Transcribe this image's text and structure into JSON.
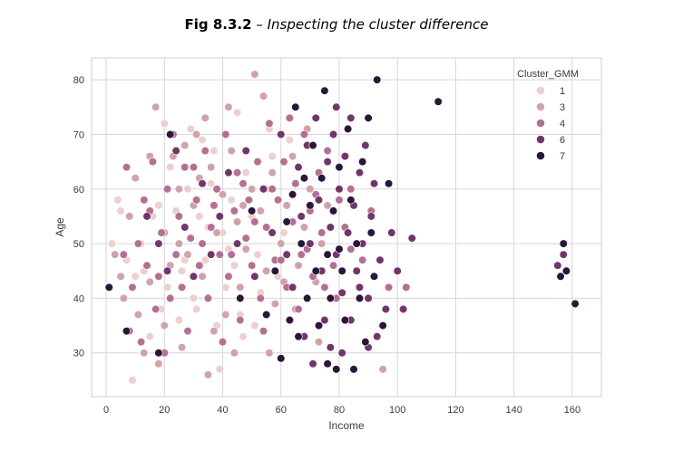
{
  "caption": {
    "number": "Fig 8.3.2",
    "separator": " – ",
    "title": "Inspecting  the cluster difference"
  },
  "chart_data": {
    "type": "scatter",
    "title": "",
    "xlabel": "Income",
    "ylabel": "Age",
    "xlim": [
      -5,
      170
    ],
    "ylim": [
      22,
      84
    ],
    "xticks": [
      0,
      20,
      40,
      60,
      80,
      100,
      120,
      140,
      160
    ],
    "yticks": [
      30,
      40,
      50,
      60,
      70,
      80
    ],
    "grid": true,
    "legend": {
      "title": "Cluster_GMM",
      "placement": "top-right",
      "entries": [
        "1",
        "3",
        "4",
        "6",
        "7"
      ]
    },
    "series": [
      {
        "name": "1",
        "color": "#ebd0cd",
        "points": [
          [
            2,
            50
          ],
          [
            4,
            58
          ],
          [
            5,
            56
          ],
          [
            7,
            47
          ],
          [
            9,
            25
          ],
          [
            10,
            44
          ],
          [
            12,
            50
          ],
          [
            15,
            33
          ],
          [
            18,
            57
          ],
          [
            20,
            72
          ],
          [
            22,
            64
          ],
          [
            24,
            56
          ],
          [
            26,
            45
          ],
          [
            28,
            60
          ],
          [
            30,
            40
          ],
          [
            31,
            38
          ],
          [
            32,
            55
          ],
          [
            34,
            47
          ],
          [
            36,
            61
          ],
          [
            37,
            67
          ],
          [
            38,
            35
          ],
          [
            40,
            52
          ],
          [
            41,
            42
          ],
          [
            43,
            58
          ],
          [
            44,
            46
          ],
          [
            46,
            37
          ],
          [
            48,
            63
          ],
          [
            50,
            55
          ],
          [
            52,
            48
          ],
          [
            53,
            41
          ],
          [
            55,
            60
          ],
          [
            57,
            66
          ],
          [
            59,
            44
          ],
          [
            61,
            52
          ],
          [
            63,
            69
          ],
          [
            27,
            47
          ],
          [
            35,
            53
          ],
          [
            42,
            49
          ],
          [
            47,
            33
          ],
          [
            21,
            42
          ],
          [
            16,
            55
          ],
          [
            33,
            69
          ],
          [
            45,
            74
          ],
          [
            56,
            71
          ],
          [
            39,
            27
          ],
          [
            25,
            36
          ],
          [
            51,
            35
          ],
          [
            29,
            71
          ],
          [
            19,
            38
          ],
          [
            13,
            45
          ]
        ]
      },
      {
        "name": "3",
        "color": "#d1a2ad",
        "points": [
          [
            3,
            48
          ],
          [
            5,
            44
          ],
          [
            6,
            40
          ],
          [
            8,
            55
          ],
          [
            10,
            62
          ],
          [
            11,
            37
          ],
          [
            13,
            30
          ],
          [
            15,
            43
          ],
          [
            17,
            75
          ],
          [
            18,
            28
          ],
          [
            20,
            52
          ],
          [
            22,
            46
          ],
          [
            23,
            66
          ],
          [
            25,
            60
          ],
          [
            26,
            31
          ],
          [
            28,
            48
          ],
          [
            30,
            57
          ],
          [
            31,
            70
          ],
          [
            33,
            44
          ],
          [
            35,
            26
          ],
          [
            36,
            64
          ],
          [
            38,
            52
          ],
          [
            40,
            59
          ],
          [
            41,
            37
          ],
          [
            43,
            67
          ],
          [
            45,
            54
          ],
          [
            46,
            42
          ],
          [
            48,
            49
          ],
          [
            50,
            60
          ],
          [
            51,
            81
          ],
          [
            53,
            56
          ],
          [
            55,
            45
          ],
          [
            57,
            63
          ],
          [
            58,
            39
          ],
          [
            60,
            50
          ],
          [
            62,
            57
          ],
          [
            64,
            66
          ],
          [
            66,
            46
          ],
          [
            68,
            53
          ],
          [
            70,
            60
          ],
          [
            72,
            43
          ],
          [
            74,
            50
          ],
          [
            76,
            57
          ],
          [
            20,
            35
          ],
          [
            27,
            68
          ],
          [
            34,
            73
          ],
          [
            44,
            30
          ],
          [
            54,
            77
          ],
          [
            65,
            38
          ],
          [
            73,
            32
          ],
          [
            25,
            50
          ],
          [
            32,
            62
          ],
          [
            47,
            57
          ],
          [
            61,
            43
          ],
          [
            69,
            71
          ],
          [
            15,
            66
          ],
          [
            37,
            34
          ],
          [
            56,
            30
          ],
          [
            95,
            27
          ],
          [
            42,
            75
          ]
        ]
      },
      {
        "name": "4",
        "color": "#b47094",
        "points": [
          [
            6,
            48
          ],
          [
            7,
            64
          ],
          [
            9,
            42
          ],
          [
            11,
            50
          ],
          [
            12,
            32
          ],
          [
            14,
            46
          ],
          [
            15,
            56
          ],
          [
            16,
            65
          ],
          [
            17,
            38
          ],
          [
            19,
            52
          ],
          [
            21,
            60
          ],
          [
            22,
            40
          ],
          [
            24,
            48
          ],
          [
            25,
            55
          ],
          [
            27,
            64
          ],
          [
            28,
            34
          ],
          [
            29,
            51
          ],
          [
            31,
            58
          ],
          [
            32,
            46
          ],
          [
            34,
            67
          ],
          [
            35,
            40
          ],
          [
            36,
            53
          ],
          [
            38,
            60
          ],
          [
            39,
            48
          ],
          [
            41,
            70
          ],
          [
            42,
            44
          ],
          [
            44,
            56
          ],
          [
            45,
            63
          ],
          [
            46,
            36
          ],
          [
            48,
            51
          ],
          [
            49,
            58
          ],
          [
            50,
            46
          ],
          [
            52,
            65
          ],
          [
            53,
            40
          ],
          [
            55,
            53
          ],
          [
            56,
            72
          ],
          [
            58,
            47
          ],
          [
            59,
            58
          ],
          [
            61,
            65
          ],
          [
            62,
            42
          ],
          [
            64,
            54
          ],
          [
            65,
            61
          ],
          [
            67,
            48
          ],
          [
            68,
            70
          ],
          [
            70,
            56
          ],
          [
            71,
            44
          ],
          [
            73,
            63
          ],
          [
            74,
            52
          ],
          [
            76,
            67
          ],
          [
            78,
            46
          ],
          [
            80,
            58
          ],
          [
            82,
            53
          ],
          [
            84,
            49
          ],
          [
            13,
            58
          ],
          [
            18,
            44
          ],
          [
            23,
            70
          ],
          [
            26,
            42
          ],
          [
            30,
            64
          ],
          [
            33,
            50
          ],
          [
            37,
            57
          ],
          [
            40,
            32
          ],
          [
            43,
            48
          ],
          [
            47,
            61
          ],
          [
            51,
            54
          ],
          [
            54,
            34
          ],
          [
            57,
            60
          ],
          [
            60,
            47
          ],
          [
            63,
            73
          ],
          [
            66,
            38
          ],
          [
            69,
            49
          ],
          [
            72,
            59
          ],
          [
            75,
            42
          ],
          [
            79,
            40
          ],
          [
            84,
            60
          ],
          [
            88,
            47
          ],
          [
            91,
            56
          ],
          [
            97,
            42
          ],
          [
            103,
            42
          ],
          [
            8,
            34
          ],
          [
            20,
            30
          ]
        ]
      },
      {
        "name": "6",
        "color": "#70366a",
        "points": [
          [
            14,
            55
          ],
          [
            18,
            50
          ],
          [
            21,
            45
          ],
          [
            24,
            67
          ],
          [
            27,
            53
          ],
          [
            30,
            44
          ],
          [
            33,
            61
          ],
          [
            36,
            48
          ],
          [
            39,
            55
          ],
          [
            42,
            63
          ],
          [
            45,
            50
          ],
          [
            48,
            67
          ],
          [
            51,
            44
          ],
          [
            54,
            60
          ],
          [
            57,
            52
          ],
          [
            60,
            70
          ],
          [
            62,
            48
          ],
          [
            64,
            42
          ],
          [
            66,
            64
          ],
          [
            67,
            55
          ],
          [
            69,
            68
          ],
          [
            70,
            50
          ],
          [
            72,
            73
          ],
          [
            73,
            58
          ],
          [
            74,
            45
          ],
          [
            75,
            36
          ],
          [
            76,
            65
          ],
          [
            77,
            53
          ],
          [
            78,
            70
          ],
          [
            79,
            48
          ],
          [
            80,
            60
          ],
          [
            81,
            41
          ],
          [
            82,
            66
          ],
          [
            83,
            52
          ],
          [
            84,
            73
          ],
          [
            85,
            57
          ],
          [
            86,
            45
          ],
          [
            87,
            63
          ],
          [
            88,
            50
          ],
          [
            89,
            68
          ],
          [
            90,
            40
          ],
          [
            91,
            55
          ],
          [
            92,
            61
          ],
          [
            94,
            47
          ],
          [
            96,
            38
          ],
          [
            98,
            52
          ],
          [
            100,
            45
          ],
          [
            102,
            38
          ],
          [
            105,
            51
          ],
          [
            68,
            33
          ],
          [
            71,
            28
          ],
          [
            77,
            31
          ],
          [
            84,
            36
          ],
          [
            90,
            31
          ],
          [
            93,
            33
          ],
          [
            157,
            48
          ],
          [
            155,
            46
          ],
          [
            81,
            30
          ],
          [
            87,
            42
          ],
          [
            79,
            75
          ]
        ]
      },
      {
        "name": "7",
        "color": "#2b1637",
        "points": [
          [
            1,
            42
          ],
          [
            7,
            34
          ],
          [
            18,
            30
          ],
          [
            22,
            70
          ],
          [
            46,
            40
          ],
          [
            50,
            56
          ],
          [
            55,
            37
          ],
          [
            58,
            45
          ],
          [
            60,
            29
          ],
          [
            62,
            54
          ],
          [
            63,
            36
          ],
          [
            64,
            59
          ],
          [
            65,
            75
          ],
          [
            66,
            33
          ],
          [
            67,
            50
          ],
          [
            68,
            62
          ],
          [
            69,
            40
          ],
          [
            70,
            57
          ],
          [
            71,
            68
          ],
          [
            72,
            45
          ],
          [
            73,
            35
          ],
          [
            74,
            62
          ],
          [
            75,
            78
          ],
          [
            76,
            48
          ],
          [
            77,
            40
          ],
          [
            78,
            56
          ],
          [
            79,
            27
          ],
          [
            80,
            64
          ],
          [
            81,
            45
          ],
          [
            82,
            36
          ],
          [
            83,
            71
          ],
          [
            84,
            58
          ],
          [
            85,
            27
          ],
          [
            86,
            50
          ],
          [
            87,
            40
          ],
          [
            88,
            65
          ],
          [
            89,
            32
          ],
          [
            90,
            73
          ],
          [
            91,
            52
          ],
          [
            92,
            44
          ],
          [
            93,
            80
          ],
          [
            95,
            35
          ],
          [
            97,
            61
          ],
          [
            114,
            76
          ],
          [
            157,
            50
          ],
          [
            156,
            44
          ],
          [
            158,
            45
          ],
          [
            161,
            39
          ],
          [
            76,
            28
          ],
          [
            80,
            49
          ]
        ]
      }
    ]
  }
}
